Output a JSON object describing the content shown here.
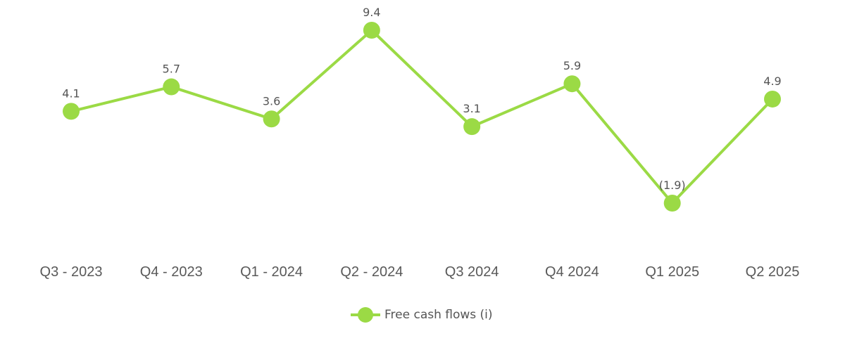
{
  "chart_data": {
    "type": "line",
    "title": "",
    "xlabel": "",
    "ylabel": "",
    "categories": [
      "Q3 - 2023",
      "Q4 - 2023",
      "Q1 - 2024",
      "Q2 - 2024",
      "Q3 2024",
      "Q4 2024",
      "Q1 2025",
      "Q2 2025"
    ],
    "series": [
      {
        "name": "Free cash flows (i)",
        "values": [
          4.1,
          5.7,
          3.6,
          9.4,
          3.1,
          5.9,
          -1.9,
          4.9
        ],
        "labels": [
          "4.1",
          "5.7",
          "3.6",
          "9.4",
          "3.1",
          "5.9",
          "(1.9)",
          "4.9"
        ],
        "color": "#9BDA45"
      }
    ],
    "grid": false,
    "legend_position": "bottom",
    "y_axis_visible": false
  },
  "legend": {
    "label": "Free cash flows (i)"
  },
  "colors": {
    "series": "#9BDA45",
    "text": "#555555"
  }
}
